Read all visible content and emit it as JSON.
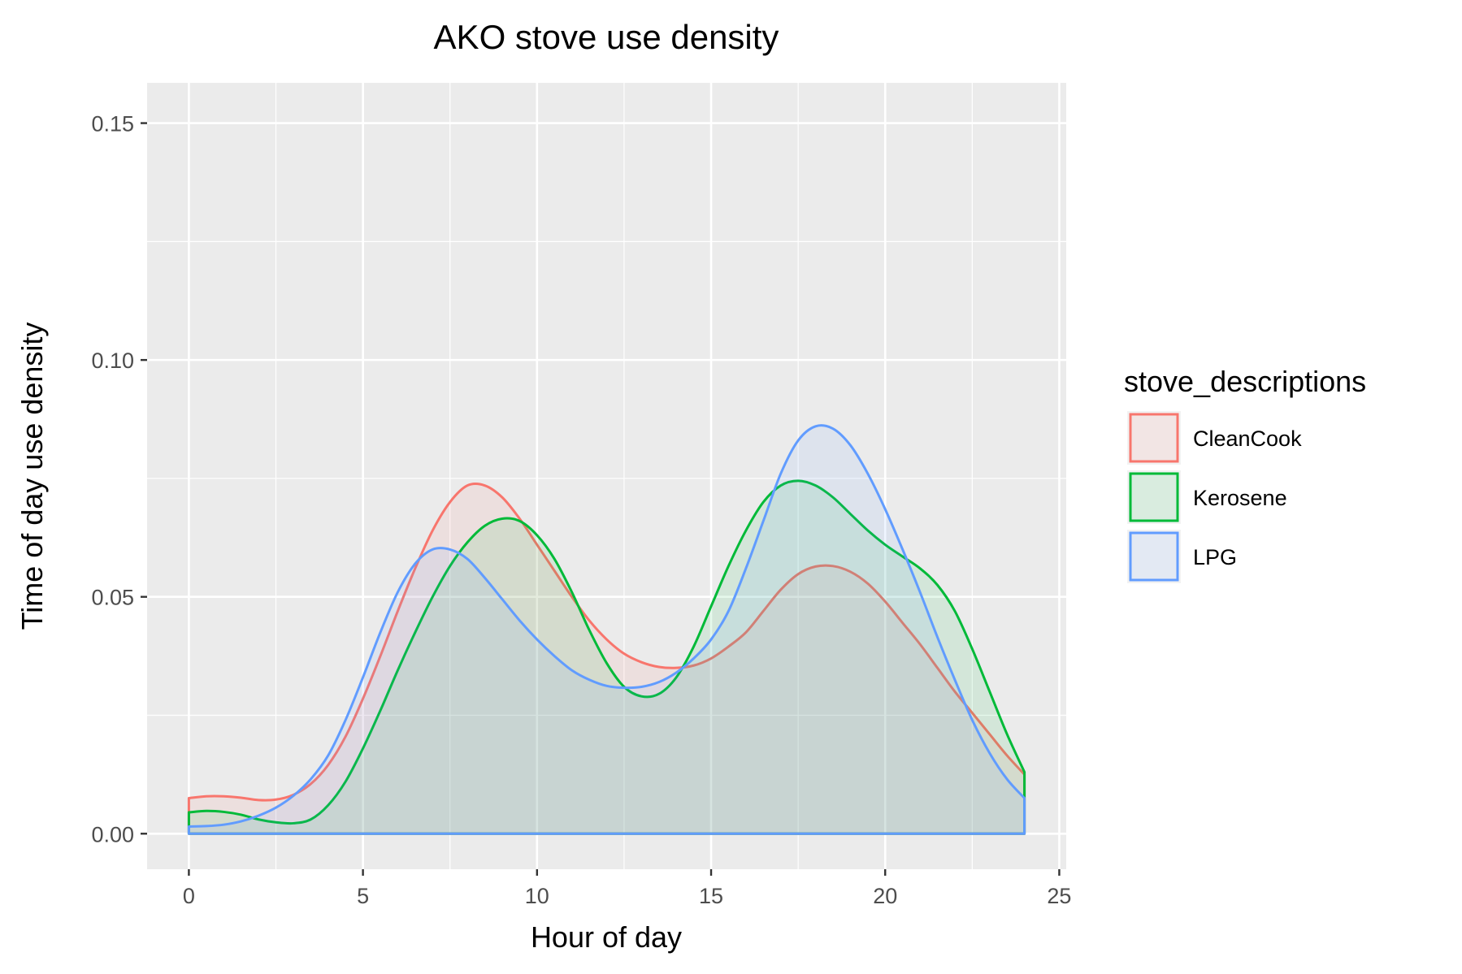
{
  "chart_data": {
    "type": "area",
    "title": "AKO stove use density",
    "xlabel": "Hour of day",
    "ylabel": "Time of day use density",
    "xlim": [
      -1.2,
      25.2
    ],
    "ylim": [
      -0.0075,
      0.1585
    ],
    "x_ticks": [
      0,
      5,
      10,
      15,
      20,
      25
    ],
    "x_tick_labels": [
      "0",
      "5",
      "10",
      "15",
      "20",
      "25"
    ],
    "y_ticks": [
      0.0,
      0.05,
      0.1,
      0.15
    ],
    "y_tick_labels": [
      "0.00",
      "0.05",
      "0.10",
      "0.15"
    ],
    "grid": true,
    "legend": {
      "title": "stove_descriptions",
      "position": "right"
    },
    "x": [
      0,
      0.5,
      1,
      1.5,
      2,
      2.5,
      3,
      3.5,
      4,
      4.5,
      5,
      5.5,
      6,
      6.5,
      7,
      7.5,
      8,
      8.5,
      9,
      9.5,
      10,
      10.5,
      11,
      11.5,
      12,
      12.5,
      13,
      13.5,
      14,
      14.5,
      15,
      15.5,
      16,
      16.5,
      17,
      17.5,
      18,
      18.5,
      19,
      19.5,
      20,
      20.5,
      21,
      21.5,
      22,
      22.5,
      23,
      23.5,
      24
    ],
    "series": [
      {
        "name": "CleanCook",
        "color": "#F8766D",
        "values": [
          0.0075,
          0.0079,
          0.0079,
          0.0076,
          0.0071,
          0.0072,
          0.0082,
          0.0105,
          0.0145,
          0.0205,
          0.0285,
          0.0375,
          0.047,
          0.056,
          0.064,
          0.07,
          0.0735,
          0.0735,
          0.071,
          0.0665,
          0.061,
          0.0555,
          0.05,
          0.045,
          0.041,
          0.038,
          0.0362,
          0.0352,
          0.035,
          0.0355,
          0.037,
          0.0395,
          0.0425,
          0.047,
          0.0515,
          0.0548,
          0.0564,
          0.0565,
          0.0553,
          0.0528,
          0.049,
          0.0445,
          0.04,
          0.035,
          0.03,
          0.0255,
          0.021,
          0.0165,
          0.0125
        ]
      },
      {
        "name": "Kerosene",
        "color": "#00BA38",
        "values": [
          0.0045,
          0.0048,
          0.0046,
          0.004,
          0.003,
          0.0024,
          0.0022,
          0.003,
          0.006,
          0.011,
          0.018,
          0.026,
          0.0345,
          0.0425,
          0.05,
          0.0565,
          0.0615,
          0.065,
          0.0665,
          0.066,
          0.063,
          0.058,
          0.051,
          0.043,
          0.036,
          0.031,
          0.029,
          0.0295,
          0.033,
          0.0395,
          0.048,
          0.0565,
          0.064,
          0.07,
          0.0735,
          0.0745,
          0.0735,
          0.071,
          0.0675,
          0.064,
          0.061,
          0.0585,
          0.056,
          0.0525,
          0.047,
          0.039,
          0.03,
          0.021,
          0.013
        ]
      },
      {
        "name": "LPG",
        "color": "#619CFF",
        "values": [
          0.0015,
          0.0016,
          0.0019,
          0.0026,
          0.0038,
          0.0055,
          0.008,
          0.0115,
          0.0165,
          0.024,
          0.033,
          0.0425,
          0.051,
          0.057,
          0.06,
          0.06,
          0.058,
          0.054,
          0.0495,
          0.045,
          0.041,
          0.0375,
          0.0345,
          0.0325,
          0.0312,
          0.0308,
          0.031,
          0.032,
          0.034,
          0.037,
          0.041,
          0.047,
          0.056,
          0.066,
          0.076,
          0.083,
          0.086,
          0.0855,
          0.082,
          0.076,
          0.0685,
          0.06,
          0.051,
          0.0415,
          0.0325,
          0.024,
          0.017,
          0.0115,
          0.0075
        ]
      }
    ]
  }
}
